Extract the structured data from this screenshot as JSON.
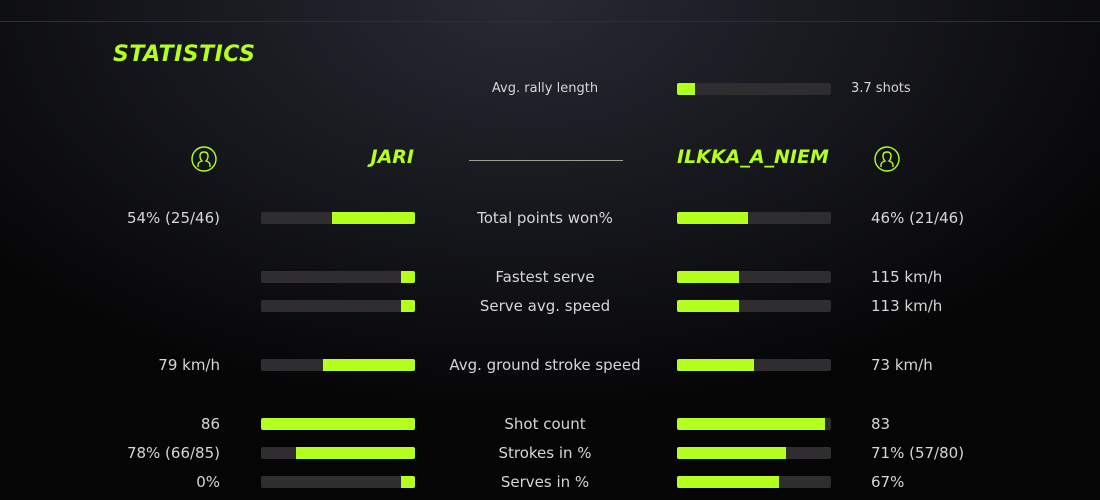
{
  "title": "STATISTICS",
  "accent": "#b4ff1e",
  "rally": {
    "label": "Avg. rally length",
    "value": "3.7 shots",
    "fill": 12
  },
  "players": {
    "left": {
      "name": "JARI",
      "icon": "user-circle-icon"
    },
    "right": {
      "name": "ILKKA_A_NIEM",
      "icon": "user-circle-icon"
    }
  },
  "stats": [
    {
      "label": "Total points won%",
      "left": "54% (25/46)",
      "right": "46% (21/46)",
      "left_fill": 54,
      "right_fill": 46
    },
    {
      "label": "Fastest serve",
      "left": "",
      "right": "115 km/h",
      "left_fill": 9,
      "right_fill": 40
    },
    {
      "label": "Serve avg. speed",
      "left": "",
      "right": "113 km/h",
      "left_fill": 9,
      "right_fill": 40
    },
    {
      "label": "Avg. ground stroke speed",
      "left": "79 km/h",
      "right": "73 km/h",
      "left_fill": 60,
      "right_fill": 50
    },
    {
      "label": "Shot count",
      "left": "86",
      "right": "83",
      "left_fill": 100,
      "right_fill": 96
    },
    {
      "label": "Strokes in %",
      "left": "78% (66/85)",
      "right": "71% (57/80)",
      "left_fill": 77,
      "right_fill": 71
    },
    {
      "label": "Serves in %",
      "left": "0%",
      "right": "67%",
      "left_fill": 9,
      "right_fill": 66
    }
  ]
}
